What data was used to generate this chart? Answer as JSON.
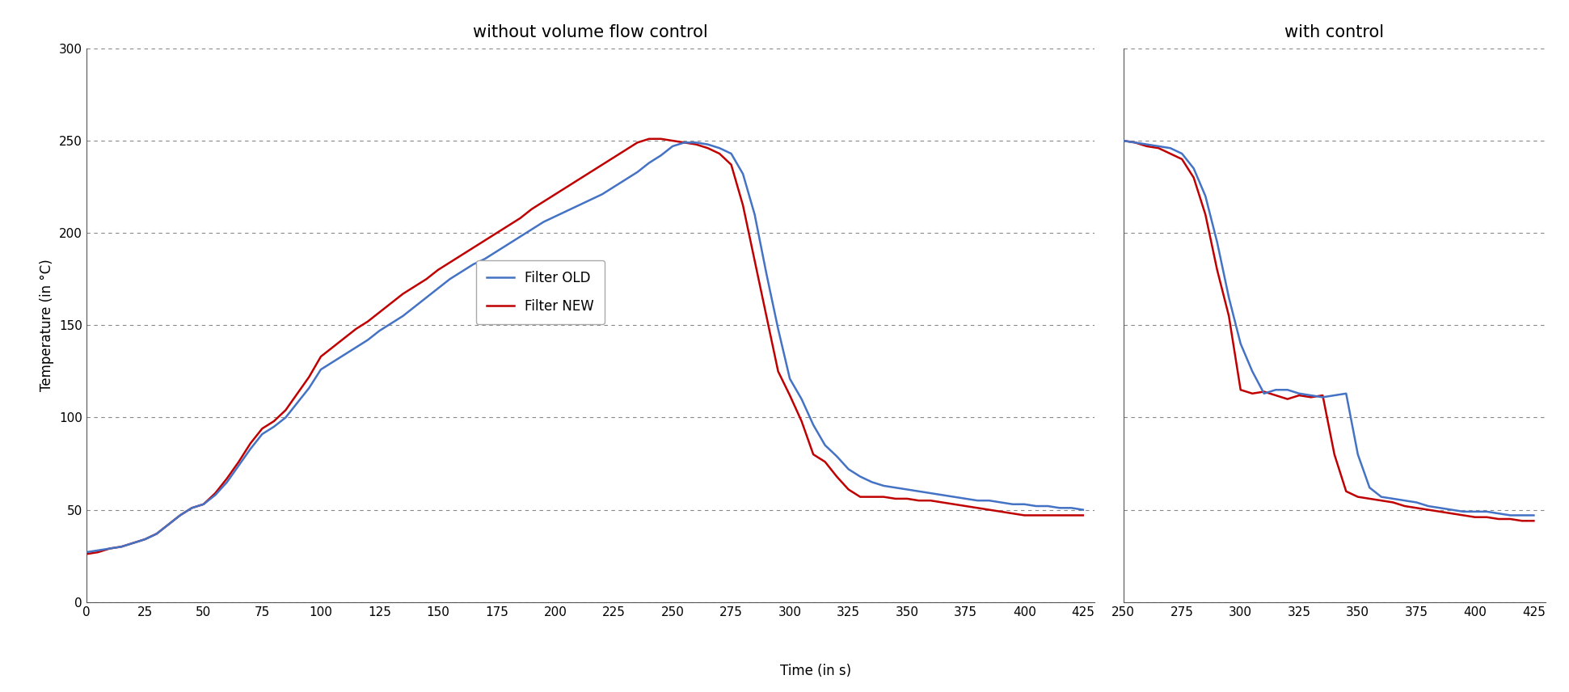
{
  "title_left": "without volume flow control",
  "title_right": "with control",
  "xlabel": "Time (in s)",
  "ylabel": "Temperature (in °C)",
  "ylim": [
    0,
    300
  ],
  "yticks": [
    0,
    50,
    100,
    150,
    200,
    250,
    300
  ],
  "xticks_left": [
    0,
    25,
    50,
    75,
    100,
    125,
    150,
    175,
    200,
    225,
    250,
    275,
    300,
    325,
    350,
    375,
    400,
    425
  ],
  "xticks_right": [
    250,
    275,
    300,
    325,
    350,
    375,
    400,
    425
  ],
  "color_old": "#4472C4",
  "color_new": "#C00000",
  "legend_labels": [
    "Filter OLD",
    "Filter NEW"
  ],
  "background_color": "#ffffff",
  "grid_color": "#aaaaaa",
  "old_x": [
    0,
    5,
    10,
    15,
    20,
    25,
    30,
    35,
    40,
    45,
    50,
    55,
    60,
    65,
    70,
    75,
    80,
    85,
    90,
    95,
    100,
    105,
    110,
    115,
    120,
    125,
    130,
    135,
    140,
    145,
    150,
    155,
    160,
    165,
    170,
    175,
    180,
    185,
    190,
    195,
    200,
    205,
    210,
    215,
    220,
    225,
    230,
    235,
    240,
    245,
    250,
    255,
    260,
    265,
    270,
    275,
    280,
    285,
    290,
    295,
    300,
    305,
    310,
    315,
    320,
    325,
    330,
    335,
    340,
    345,
    350,
    355,
    360,
    365,
    370,
    375,
    380,
    385,
    390,
    395,
    400,
    405,
    410,
    415,
    420,
    425
  ],
  "old_y": [
    27,
    28,
    29,
    30,
    32,
    34,
    37,
    42,
    47,
    51,
    53,
    58,
    65,
    74,
    83,
    91,
    95,
    100,
    108,
    116,
    126,
    130,
    134,
    138,
    142,
    147,
    151,
    155,
    160,
    165,
    170,
    175,
    179,
    183,
    186,
    190,
    194,
    198,
    202,
    206,
    209,
    212,
    215,
    218,
    221,
    225,
    229,
    233,
    238,
    242,
    247,
    249,
    249,
    248,
    246,
    243,
    232,
    210,
    178,
    148,
    121,
    110,
    96,
    85,
    79,
    72,
    68,
    65,
    63,
    62,
    61,
    60,
    59,
    58,
    57,
    56,
    55,
    55,
    54,
    53,
    53,
    52,
    52,
    51,
    51,
    50
  ],
  "new_x": [
    0,
    5,
    10,
    15,
    20,
    25,
    30,
    35,
    40,
    45,
    50,
    55,
    60,
    65,
    70,
    75,
    80,
    85,
    90,
    95,
    100,
    105,
    110,
    115,
    120,
    125,
    130,
    135,
    140,
    145,
    150,
    155,
    160,
    165,
    170,
    175,
    180,
    185,
    190,
    195,
    200,
    205,
    210,
    215,
    220,
    225,
    230,
    235,
    240,
    245,
    250,
    255,
    260,
    265,
    270,
    275,
    280,
    285,
    290,
    295,
    300,
    305,
    310,
    315,
    320,
    325,
    330,
    335,
    340,
    345,
    350,
    355,
    360,
    365,
    370,
    375,
    380,
    385,
    390,
    395,
    400,
    405,
    410,
    415,
    420,
    425
  ],
  "new_y": [
    26,
    27,
    29,
    30,
    32,
    34,
    37,
    42,
    47,
    51,
    53,
    59,
    67,
    76,
    86,
    94,
    98,
    104,
    113,
    122,
    133,
    138,
    143,
    148,
    152,
    157,
    162,
    167,
    171,
    175,
    180,
    184,
    188,
    192,
    196,
    200,
    204,
    208,
    213,
    217,
    221,
    225,
    229,
    233,
    237,
    241,
    245,
    249,
    251,
    251,
    250,
    249,
    248,
    246,
    243,
    237,
    215,
    185,
    155,
    125,
    112,
    98,
    80,
    76,
    68,
    61,
    57,
    57,
    57,
    56,
    56,
    55,
    55,
    54,
    53,
    52,
    51,
    50,
    49,
    48,
    47,
    47,
    47,
    47,
    47,
    47
  ],
  "right_x_start": 250,
  "right_old_x": [
    250,
    255,
    260,
    265,
    270,
    275,
    280,
    285,
    290,
    295,
    300,
    305,
    310,
    315,
    320,
    325,
    330,
    335,
    340,
    345,
    350,
    355,
    360,
    365,
    370,
    375,
    380,
    385,
    390,
    395,
    400,
    405,
    410,
    415,
    420,
    425
  ],
  "right_old_y": [
    250,
    249,
    248,
    247,
    246,
    243,
    235,
    220,
    195,
    165,
    140,
    125,
    113,
    115,
    115,
    113,
    112,
    111,
    112,
    113,
    80,
    62,
    57,
    56,
    55,
    54,
    52,
    51,
    50,
    49,
    49,
    49,
    48,
    47,
    47,
    47
  ],
  "right_new_y": [
    250,
    249,
    247,
    246,
    243,
    240,
    230,
    210,
    180,
    155,
    115,
    113,
    114,
    112,
    110,
    112,
    111,
    112,
    80,
    60,
    57,
    56,
    55,
    54,
    52,
    51,
    50,
    49,
    48,
    47,
    46,
    46,
    45,
    45,
    44,
    44
  ]
}
